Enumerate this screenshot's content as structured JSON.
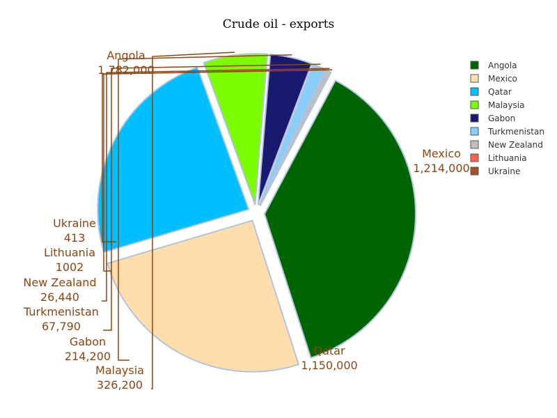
{
  "chart_data": {
    "type": "pie",
    "title": "Crude oil - exports",
    "legend_position": "top-right",
    "slices": [
      {
        "label": "Angola",
        "value": 1782000,
        "value_label": "1,782,000",
        "color": "#006400"
      },
      {
        "label": "Mexico",
        "value": 1214000,
        "value_label": "1,214,000",
        "color": "#FFDEAD"
      },
      {
        "label": "Qatar",
        "value": 1150000,
        "value_label": "1,150,000",
        "color": "#00BFFF"
      },
      {
        "label": "Malaysia",
        "value": 326200,
        "value_label": "326,200",
        "color": "#7CFC00"
      },
      {
        "label": "Gabon",
        "value": 214200,
        "value_label": "214,200",
        "color": "#191970"
      },
      {
        "label": "Turkmenistan",
        "value": 67790,
        "value_label": "67,790",
        "color": "#87CEFA"
      },
      {
        "label": "New Zealand",
        "value": 26440,
        "value_label": "26,440",
        "color": "#BEBEBE"
      },
      {
        "label": "Lithuania",
        "value": 1002,
        "value_label": "1002",
        "color": "#FF6347"
      },
      {
        "label": "Ukraine",
        "value": 413,
        "value_label": "413",
        "color": "#A0522D"
      }
    ]
  }
}
